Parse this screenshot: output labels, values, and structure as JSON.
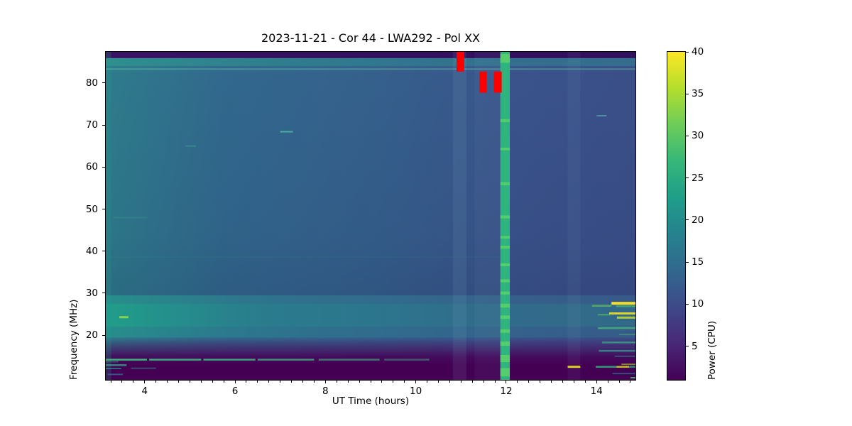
{
  "chart_data": {
    "type": "heatmap",
    "title": "2023-11-21 - Cor 44 - LWA292 - Pol XX",
    "xlabel": "UT Time (hours)",
    "ylabel": "Frequency (MHz)",
    "x_range": [
      3.14,
      14.86
    ],
    "x_ticks": [
      4,
      6,
      8,
      10,
      12,
      14
    ],
    "x_minor_step": 0.25,
    "y_range": [
      9.4,
      87.4
    ],
    "y_ticks": [
      20,
      30,
      40,
      50,
      60,
      70,
      80
    ],
    "grid": false,
    "colormap": "viridis",
    "colormap_stops": [
      "#440154",
      "#482878",
      "#3e4989",
      "#31688e",
      "#26828e",
      "#1f9e89",
      "#35b779",
      "#6dcd59",
      "#b4de2c",
      "#fde725"
    ],
    "colorbar": {
      "label": "Power (CPU)",
      "vmin": 1,
      "vmax": 40,
      "ticks": [
        5,
        10,
        15,
        20,
        25,
        30,
        35,
        40
      ]
    },
    "field": {
      "base_h_gradient": [
        [
          0,
          "#2e7d8c"
        ],
        [
          0.22,
          "#32698e"
        ],
        [
          0.5,
          "#35618d"
        ],
        [
          0.78,
          "#3a548b"
        ],
        [
          1,
          "#3b4f89"
        ]
      ],
      "bands": [
        {
          "f": [
            85.9,
            87.4
          ],
          "h": [
            [
              0,
              "#3a1264"
            ],
            [
              0.5,
              "#34115f"
            ],
            [
              1,
              "#31105c"
            ]
          ]
        },
        {
          "f": [
            84.0,
            85.9
          ],
          "h": [
            [
              0,
              "#2f8f8e"
            ],
            [
              0.35,
              "#2f7d8e"
            ],
            [
              0.75,
              "#33708e"
            ],
            [
              1,
              "#356d8e"
            ]
          ]
        },
        {
          "f": [
            29.5,
            87.4
          ],
          "v": [
            [
              0,
              "rgba(20,25,70,0)"
            ],
            [
              0.75,
              "rgba(20,25,70,0.08)"
            ],
            [
              1,
              "rgba(20,25,70,0.16)"
            ]
          ]
        },
        {
          "f": [
            27.5,
            29.5
          ],
          "h": [
            [
              0,
              "rgba(31,158,137,0.5)"
            ],
            [
              0.35,
              "rgba(31,158,137,0.2)"
            ],
            [
              1,
              "rgba(31,158,137,0.13)"
            ]
          ]
        },
        {
          "f": [
            22.0,
            27.5
          ],
          "h": [
            [
              0,
              "rgba(30,165,138,0.8)"
            ],
            [
              0.3,
              "rgba(33,145,140,0.5)"
            ],
            [
              0.7,
              "rgba(33,145,140,0.36)"
            ],
            [
              1,
              "rgba(31,158,137,0.33)"
            ]
          ]
        },
        {
          "f": [
            19.5,
            22.0
          ],
          "h": [
            [
              0,
              "rgba(31,158,137,0.5)"
            ],
            [
              0.4,
              "rgba(33,145,140,0.25)"
            ],
            [
              1,
              "rgba(33,145,140,0.18)"
            ]
          ]
        },
        {
          "f": [
            9.4,
            19.5
          ],
          "v": [
            [
              0,
              "rgba(68,1,84,0)"
            ],
            [
              0.25,
              "rgba(70,16,95,0.6)"
            ],
            [
              0.45,
              "rgba(69,5,89,0.92)"
            ],
            [
              0.65,
              "#440154"
            ],
            [
              1,
              "#440154"
            ]
          ]
        }
      ],
      "columns": [
        {
          "t": [
            3.14,
            3.26
          ],
          "c": "rgba(31,158,137,0.22)"
        },
        {
          "t": [
            10.82,
            11.12
          ],
          "c": "rgba(150,200,220,0.10)"
        },
        {
          "t": [
            11.3,
            11.9
          ],
          "c": "rgba(150,200,220,0.05)"
        },
        {
          "t": [
            13.36,
            13.64
          ],
          "c": "rgba(150,200,220,0.06)"
        }
      ],
      "streaks": [
        {
          "f": 83.3,
          "t": [
            3.14,
            14.86
          ],
          "c": "#6bd8b2",
          "a": 0.38,
          "h": 2
        },
        {
          "f": 38.6,
          "t": [
            3.14,
            12.0
          ],
          "c": "#35a08e",
          "a": 0.1,
          "h": 2
        },
        {
          "f": 24.3,
          "t": [
            3.44,
            3.64
          ],
          "c": "#8ad54f",
          "a": 0.95,
          "h": 3
        },
        {
          "f": 68.4,
          "t": [
            7.0,
            7.28
          ],
          "c": "#52cba6",
          "a": 0.75,
          "h": 2
        },
        {
          "f": 65.0,
          "t": [
            4.9,
            5.14
          ],
          "c": "#47b89b",
          "a": 0.35,
          "h": 2
        },
        {
          "f": 48.0,
          "t": [
            3.3,
            4.05
          ],
          "c": "#3fa394",
          "a": 0.28,
          "h": 2
        },
        {
          "f": 14.2,
          "t": [
            3.14,
            4.05
          ],
          "c": "#3dbc7d",
          "a": 0.95,
          "h": 2.5
        },
        {
          "f": 14.2,
          "t": [
            4.1,
            5.25
          ],
          "c": "#3dbc7d",
          "a": 0.9,
          "h": 2.5
        },
        {
          "f": 14.2,
          "t": [
            5.3,
            6.45
          ],
          "c": "#3dbc7d",
          "a": 0.85,
          "h": 2.5
        },
        {
          "f": 14.2,
          "t": [
            6.5,
            7.75
          ],
          "c": "#3dbc7d",
          "a": 0.75,
          "h": 2.5
        },
        {
          "f": 14.2,
          "t": [
            7.85,
            9.2
          ],
          "c": "#3dbc7d",
          "a": 0.6,
          "h": 2.5
        },
        {
          "f": 14.2,
          "t": [
            9.3,
            10.3
          ],
          "c": "#3dbc7d",
          "a": 0.45,
          "h": 2.5
        },
        {
          "f": 12.9,
          "t": [
            3.14,
            3.6
          ],
          "c": "#2fa58a",
          "a": 0.8,
          "h": 2.5
        },
        {
          "f": 13.7,
          "t": [
            3.14,
            3.42
          ],
          "c": "#2fa58a",
          "a": 0.45,
          "h": 2
        },
        {
          "f": 12.1,
          "t": [
            3.14,
            3.48
          ],
          "c": "#2f8f8e",
          "a": 0.7,
          "h": 2
        },
        {
          "f": 12.15,
          "t": [
            3.7,
            4.25
          ],
          "c": "#2f8f8e",
          "a": 0.5,
          "h": 2
        },
        {
          "f": 10.7,
          "t": [
            3.18,
            3.52
          ],
          "c": "#355e8d",
          "a": 0.9,
          "h": 2
        },
        {
          "f": 72.2,
          "t": [
            14.0,
            14.22
          ],
          "c": "#58d0c0",
          "a": 0.5,
          "h": 2
        },
        {
          "f": 26.9,
          "t": [
            14.43,
            14.86
          ],
          "c": "#55c667",
          "a": 0.6,
          "h": 2.5
        },
        {
          "f": 27.6,
          "t": [
            14.33,
            14.86
          ],
          "c": "#fde725",
          "a": 0.95,
          "h": 4
        },
        {
          "f": 27.0,
          "t": [
            13.9,
            14.33
          ],
          "c": "#7ad151",
          "a": 0.55,
          "h": 2.5
        },
        {
          "f": 25.2,
          "t": [
            14.28,
            14.86
          ],
          "c": "#fde725",
          "a": 0.85,
          "h": 3
        },
        {
          "f": 24.9,
          "t": [
            14.03,
            14.3
          ],
          "c": "#5ec962",
          "a": 0.5,
          "h": 2.5
        },
        {
          "f": 24.2,
          "t": [
            14.45,
            14.86
          ],
          "c": "#cde11d",
          "a": 0.8,
          "h": 3
        },
        {
          "f": 21.7,
          "t": [
            14.03,
            14.86
          ],
          "c": "#46c06f",
          "a": 0.75,
          "h": 2.5
        },
        {
          "f": 20.2,
          "t": [
            14.5,
            14.86
          ],
          "c": "#4ac16d",
          "a": 0.4,
          "h": 2
        },
        {
          "f": 18.3,
          "t": [
            14.12,
            14.86
          ],
          "c": "#40b58a",
          "a": 0.7,
          "h": 2.5
        },
        {
          "f": 16.3,
          "t": [
            14.05,
            14.86
          ],
          "c": "#2fa08c",
          "a": 0.75,
          "h": 2.5
        },
        {
          "f": 15.0,
          "t": [
            14.4,
            14.86
          ],
          "c": "#2f8f8e",
          "a": 0.5,
          "h": 2
        },
        {
          "f": 12.5,
          "t": [
            13.36,
            13.64
          ],
          "c": "#e7e419",
          "a": 0.9,
          "h": 3
        },
        {
          "f": 12.5,
          "t": [
            13.98,
            14.44
          ],
          "c": "#2fb47c",
          "a": 0.85,
          "h": 2.5
        },
        {
          "f": 12.5,
          "t": [
            14.44,
            14.72
          ],
          "c": "#d8e21b",
          "a": 0.85,
          "h": 2.5
        },
        {
          "f": 12.5,
          "t": [
            14.72,
            14.86
          ],
          "c": "#2fb47c",
          "a": 0.8,
          "h": 2.5
        },
        {
          "f": 13.1,
          "t": [
            14.55,
            14.86
          ],
          "c": "#b5de2b",
          "a": 0.6,
          "h": 2
        },
        {
          "f": 10.9,
          "t": [
            14.35,
            14.86
          ],
          "c": "#27808e",
          "a": 0.6,
          "h": 2
        },
        {
          "f": 9.9,
          "t": [
            14.75,
            14.86
          ],
          "c": "#55c667",
          "a": 0.8,
          "h": 2
        }
      ],
      "stripe": {
        "t": [
          11.87,
          12.08
        ],
        "c": "#2eb57d",
        "segments_color": "#5ad168",
        "segments": [
          [
            84.8,
            86.9
          ],
          [
            70.7,
            71.4
          ],
          [
            64.0,
            64.6
          ],
          [
            55.7,
            56.4
          ],
          [
            47.8,
            48.5
          ],
          [
            43.0,
            43.6
          ],
          [
            40.6,
            41.3
          ],
          [
            36.4,
            37.1
          ],
          [
            32.6,
            33.3
          ],
          [
            29.7,
            30.4
          ],
          [
            26.6,
            27.5
          ],
          [
            23.9,
            24.7
          ],
          [
            20.6,
            21.4
          ],
          [
            17.5,
            18.5
          ],
          [
            13.6,
            15.3
          ],
          [
            10.2,
            12.2
          ]
        ]
      },
      "masked_blocks": {
        "color": "#fb0000",
        "blocks": [
          {
            "t": [
              10.9,
              11.07
            ],
            "f": [
              82.7,
              87.4
            ]
          },
          {
            "t": [
              11.41,
              11.57
            ],
            "f": [
              77.7,
              82.7
            ]
          },
          {
            "t": [
              11.73,
              11.9
            ],
            "f": [
              77.7,
              82.7
            ]
          }
        ]
      }
    }
  }
}
